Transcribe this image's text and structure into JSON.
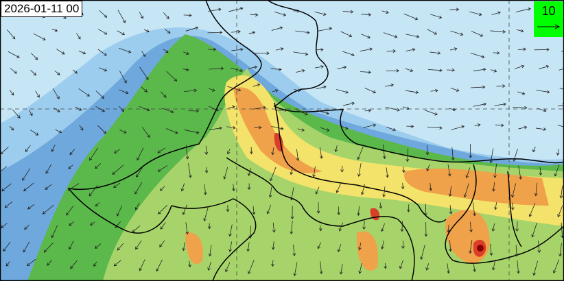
{
  "map": {
    "timestamp": "2026-01-11 00",
    "legend": {
      "reference_wind_value": "10",
      "box_color": "#00ff00"
    },
    "colors": {
      "background": "#c6e6f6",
      "blue_light": "#9dcdee",
      "blue_mid": "#6fa8dc",
      "green": "#5bb84a",
      "light_green": "#a7d46a",
      "yellow": "#f4e36a",
      "orange": "#f0a24a",
      "red": "#d9402a",
      "dark_red": "#8b0000"
    },
    "gridlines": "dashed",
    "boundaries": "country and state borders",
    "overlay": "wind vectors"
  }
}
